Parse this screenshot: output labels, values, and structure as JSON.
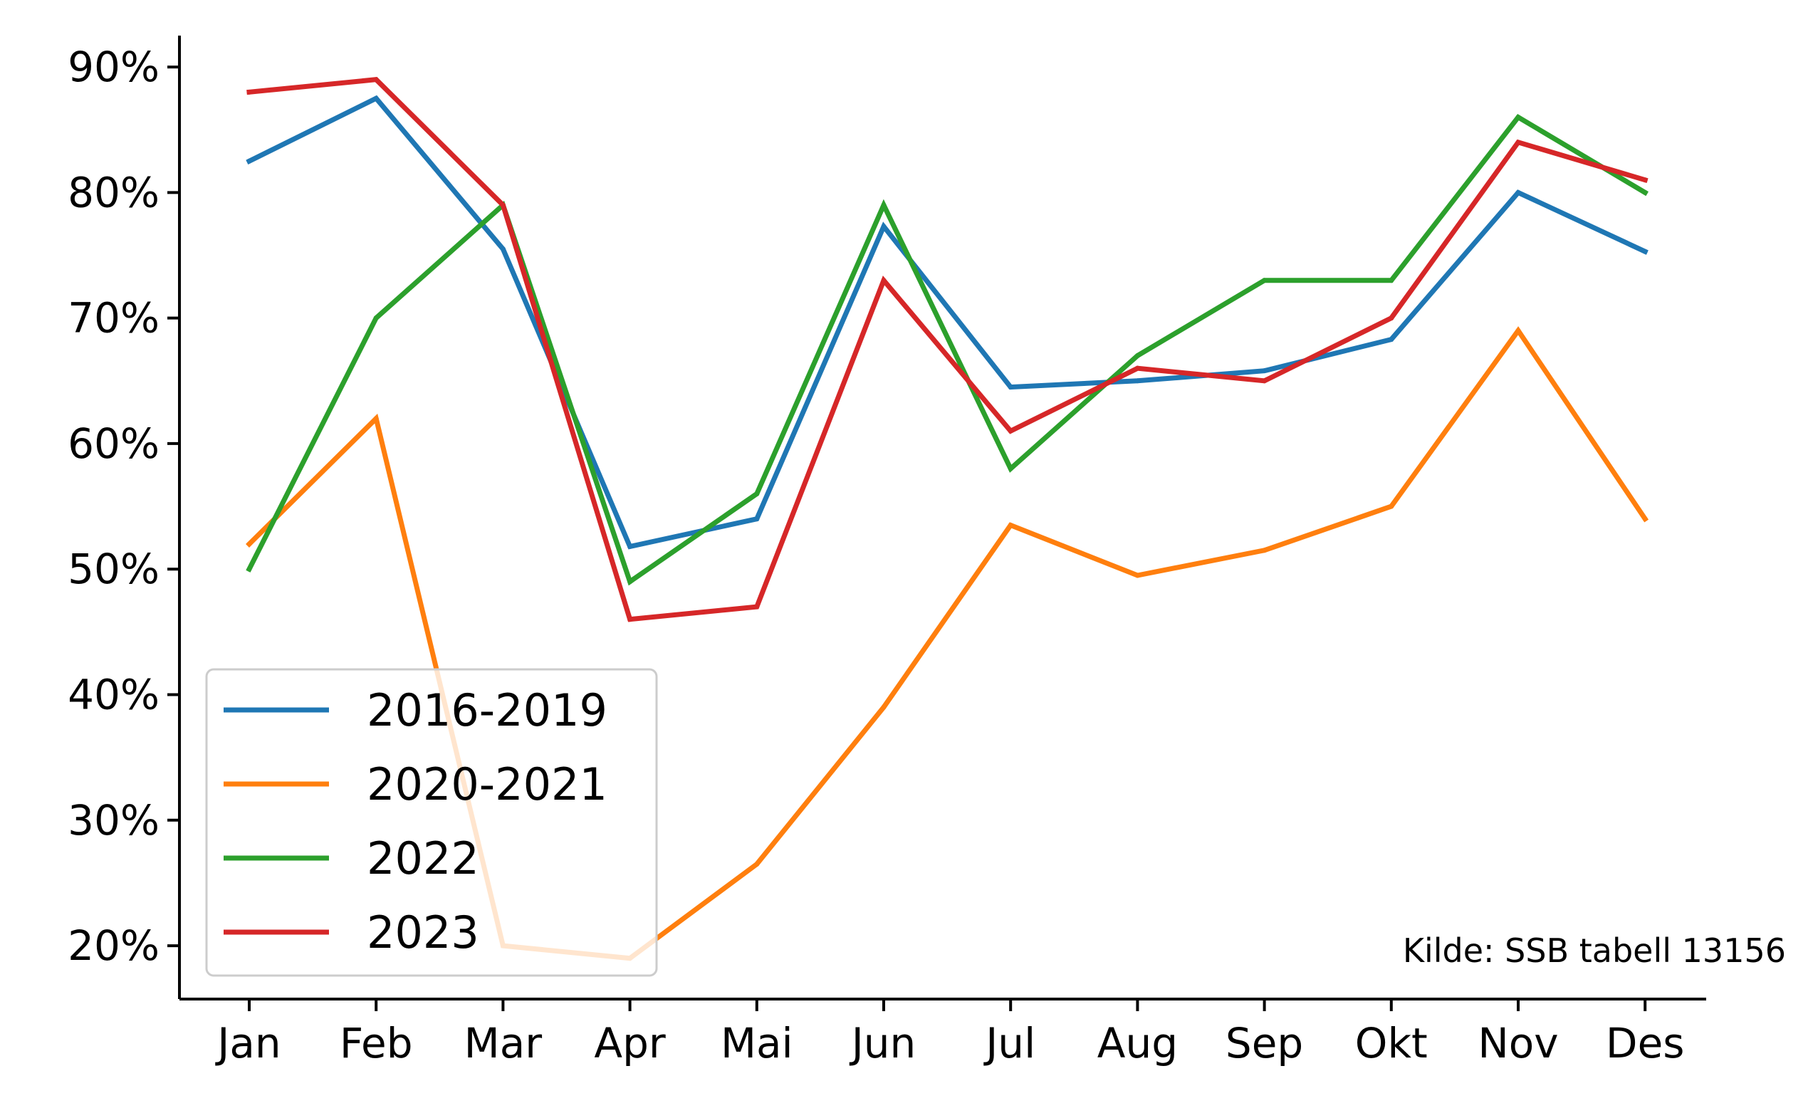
{
  "chart_data": {
    "type": "line",
    "title": "",
    "xlabel": "",
    "ylabel": "",
    "categories": [
      "Jan",
      "Feb",
      "Mar",
      "Apr",
      "Mai",
      "Jun",
      "Jul",
      "Aug",
      "Sep",
      "Okt",
      "Nov",
      "Des"
    ],
    "y_ticks": [
      20,
      30,
      40,
      50,
      60,
      70,
      80,
      90
    ],
    "y_tick_labels": [
      "20%",
      "30%",
      "40%",
      "50%",
      "60%",
      "70%",
      "80%",
      "90%"
    ],
    "ylim": [
      15.75,
      92.5
    ],
    "grid": false,
    "legend_position": "lower-left",
    "series": [
      {
        "name": "2016-2019",
        "color": "#1f77b4",
        "values": [
          82.5,
          87.5,
          75.5,
          51.8,
          54,
          77.3,
          64.5,
          65,
          65.8,
          68.3,
          80,
          75.3
        ]
      },
      {
        "name": "2020-2021",
        "color": "#ff7f0e",
        "values": [
          52,
          62,
          20,
          19,
          26.5,
          39,
          53.5,
          49.5,
          51.5,
          55,
          69,
          54
        ]
      },
      {
        "name": "2022",
        "color": "#2ca02c",
        "values": [
          50,
          70,
          79,
          49,
          56,
          79,
          58,
          67,
          73,
          73,
          86,
          80
        ]
      },
      {
        "name": "2023",
        "color": "#d62728",
        "values": [
          88,
          89,
          79,
          46,
          47,
          73,
          61,
          66,
          65,
          70,
          84,
          81
        ]
      }
    ],
    "annotation": "Kilde: SSB tabell 13156"
  }
}
